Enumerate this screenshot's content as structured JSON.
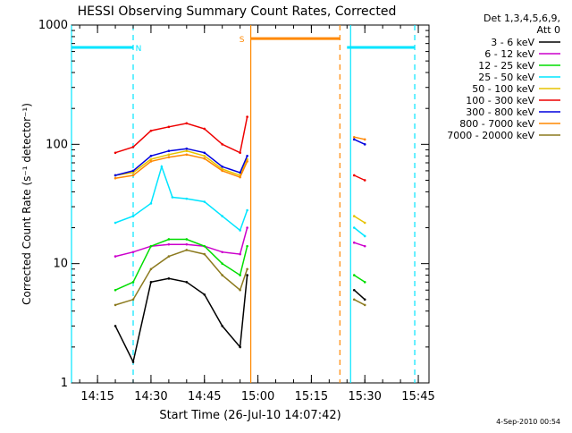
{
  "chart_data": {
    "type": "line",
    "title": "HESSI Observing Summary Count Rates, Corrected",
    "xlabel": "Start Time (26-Jul-10 14:07:42)",
    "ylabel": "Corrected Count Rate (s⁻¹ detector⁻¹)",
    "y_scale": "log",
    "ylim": [
      1,
      1000
    ],
    "xlim": [
      "14:07:42",
      "15:48:00"
    ],
    "x_ticks": [
      "14:15",
      "14:30",
      "14:45",
      "15:00",
      "15:15",
      "15:30",
      "15:45"
    ],
    "y_ticks": [
      "1",
      "10",
      "100",
      "1000"
    ],
    "legend_title": [
      "Det 1,3,4,5,6,9,",
      "Att 0"
    ],
    "legend_position": "outside-right",
    "footer_date": "4-Sep-2010 00:54",
    "series": [
      {
        "name": "3 - 6 keV",
        "color": "#000000",
        "points": [
          [
            "14:20",
            3.0
          ],
          [
            "14:25",
            1.5
          ],
          [
            "14:30",
            7.0
          ],
          [
            "14:35",
            7.5
          ],
          [
            "14:40",
            7.0
          ],
          [
            "14:45",
            5.5
          ],
          [
            "14:50",
            3.0
          ],
          [
            "14:55",
            2.0
          ],
          [
            "14:57",
            8.0
          ],
          [
            "15:27",
            6.0
          ],
          [
            "15:30",
            5.0
          ]
        ]
      },
      {
        "name": "6 - 12 keV",
        "color": "#cc00cc",
        "points": [
          [
            "14:20",
            11.5
          ],
          [
            "14:25",
            12.5
          ],
          [
            "14:30",
            14.0
          ],
          [
            "14:35",
            14.5
          ],
          [
            "14:40",
            14.5
          ],
          [
            "14:45",
            14.0
          ],
          [
            "14:50",
            12.5
          ],
          [
            "14:55",
            12.0
          ],
          [
            "14:57",
            20.0
          ],
          [
            "15:27",
            15.0
          ],
          [
            "15:30",
            14.0
          ]
        ]
      },
      {
        "name": "12 - 25 keV",
        "color": "#00dd00",
        "points": [
          [
            "14:20",
            6.0
          ],
          [
            "14:25",
            7.0
          ],
          [
            "14:30",
            14.0
          ],
          [
            "14:35",
            16.0
          ],
          [
            "14:40",
            16.0
          ],
          [
            "14:45",
            14.0
          ],
          [
            "14:50",
            10.0
          ],
          [
            "14:55",
            8.0
          ],
          [
            "14:57",
            14.0
          ],
          [
            "15:27",
            8.0
          ],
          [
            "15:30",
            7.0
          ]
        ]
      },
      {
        "name": "25 - 50 keV",
        "color": "#00e5ff",
        "points": [
          [
            "14:20",
            22.0
          ],
          [
            "14:25",
            25.0
          ],
          [
            "14:30",
            32.0
          ],
          [
            "14:33",
            65.0
          ],
          [
            "14:36",
            36.0
          ],
          [
            "14:40",
            35.0
          ],
          [
            "14:45",
            33.0
          ],
          [
            "14:50",
            25.0
          ],
          [
            "14:55",
            19.0
          ],
          [
            "14:57",
            28.0
          ],
          [
            "15:27",
            20.0
          ],
          [
            "15:30",
            17.0
          ]
        ]
      },
      {
        "name": "50 - 100 keV",
        "color": "#e6c300",
        "points": [
          [
            "14:20",
            55.0
          ],
          [
            "14:25",
            58.0
          ],
          [
            "14:30",
            75.0
          ],
          [
            "14:35",
            82.0
          ],
          [
            "14:40",
            88.0
          ],
          [
            "14:45",
            80.0
          ],
          [
            "14:50",
            62.0
          ],
          [
            "14:55",
            55.0
          ],
          [
            "14:57",
            75.0
          ],
          [
            "15:27",
            25.0
          ],
          [
            "15:30",
            22.0
          ]
        ]
      },
      {
        "name": "100 - 300 keV",
        "color": "#ee0000",
        "points": [
          [
            "14:20",
            85.0
          ],
          [
            "14:25",
            95.0
          ],
          [
            "14:30",
            130.0
          ],
          [
            "14:35",
            140.0
          ],
          [
            "14:40",
            150.0
          ],
          [
            "14:45",
            135.0
          ],
          [
            "14:50",
            100.0
          ],
          [
            "14:55",
            85.0
          ],
          [
            "14:57",
            170.0
          ],
          [
            "15:27",
            55.0
          ],
          [
            "15:30",
            50.0
          ]
        ]
      },
      {
        "name": "300 - 800 keV",
        "color": "#0000dd",
        "points": [
          [
            "14:20",
            55.0
          ],
          [
            "14:25",
            60.0
          ],
          [
            "14:30",
            80.0
          ],
          [
            "14:35",
            88.0
          ],
          [
            "14:40",
            92.0
          ],
          [
            "14:45",
            85.0
          ],
          [
            "14:50",
            65.0
          ],
          [
            "14:55",
            58.0
          ],
          [
            "14:57",
            80.0
          ],
          [
            "15:27",
            110.0
          ],
          [
            "15:30",
            100.0
          ]
        ]
      },
      {
        "name": "800 - 7000 keV",
        "color": "#ff8800",
        "points": [
          [
            "14:20",
            52.0
          ],
          [
            "14:25",
            55.0
          ],
          [
            "14:30",
            72.0
          ],
          [
            "14:35",
            78.0
          ],
          [
            "14:40",
            82.0
          ],
          [
            "14:45",
            76.0
          ],
          [
            "14:50",
            60.0
          ],
          [
            "14:55",
            53.0
          ],
          [
            "14:57",
            72.0
          ],
          [
            "15:27",
            115.0
          ],
          [
            "15:30",
            110.0
          ]
        ]
      },
      {
        "name": "7000 - 20000 keV",
        "color": "#8c7a1f",
        "points": [
          [
            "14:20",
            4.5
          ],
          [
            "14:25",
            5.0
          ],
          [
            "14:30",
            9.0
          ],
          [
            "14:35",
            11.5
          ],
          [
            "14:40",
            13.0
          ],
          [
            "14:45",
            12.0
          ],
          [
            "14:50",
            8.0
          ],
          [
            "14:55",
            6.0
          ],
          [
            "14:57",
            9.0
          ],
          [
            "15:27",
            5.0
          ],
          [
            "15:30",
            4.5
          ]
        ]
      }
    ],
    "annotations": [
      {
        "label": "N",
        "color": "#00e5ff",
        "level": 650,
        "segments": [
          [
            "14:07:42",
            "14:25"
          ],
          [
            "15:25",
            "15:44"
          ]
        ],
        "verticals_solid": [
          "14:07:42",
          "15:26"
        ],
        "verticals_dashed": [
          "14:25",
          "15:44"
        ]
      },
      {
        "label": "S",
        "color": "#ff8800",
        "level": 770,
        "segments": [
          [
            "14:58",
            "15:23"
          ]
        ],
        "verticals_solid": [
          "14:58"
        ],
        "verticals_dashed": [
          "15:23"
        ]
      }
    ]
  }
}
